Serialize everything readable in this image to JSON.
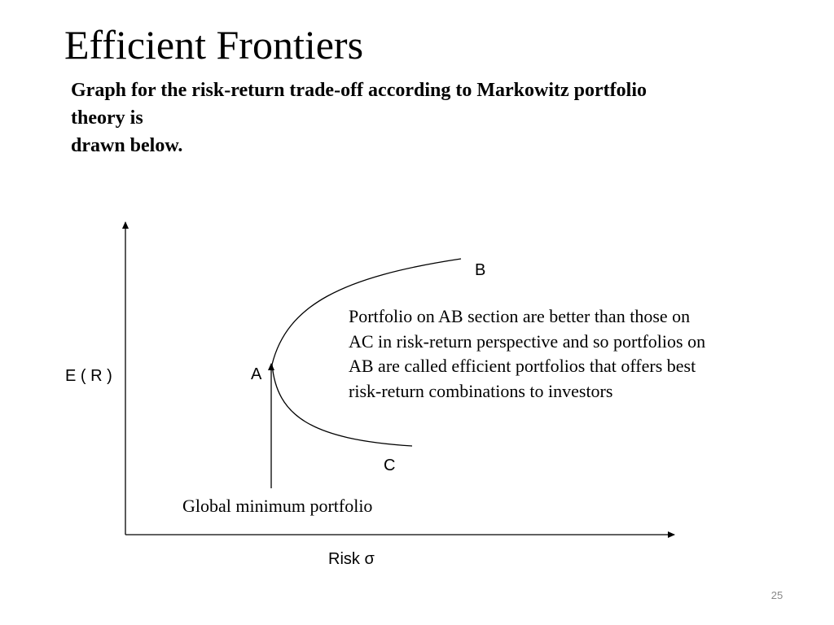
{
  "slide": {
    "title": "Efficient Frontiers",
    "intro_lines": [
      "Graph for the risk-return trade-off according to Markowitz portfolio",
      "theory is",
      "drawn below."
    ],
    "page_number": "25"
  },
  "diagram": {
    "y_axis_label": "E ( R )",
    "x_axis_label": "Risk σ",
    "points": {
      "a": "A",
      "b": "B",
      "c": "C"
    },
    "global_minimum_label": "Global minimum portfolio",
    "note_lines": [
      "Portfolio on AB section are better than  those on",
      "AC in risk-return perspective and so portfolios on",
      "AB are called efficient portfolios that offers best",
      "risk-return combinations to investors"
    ],
    "line_color": "#000000"
  }
}
